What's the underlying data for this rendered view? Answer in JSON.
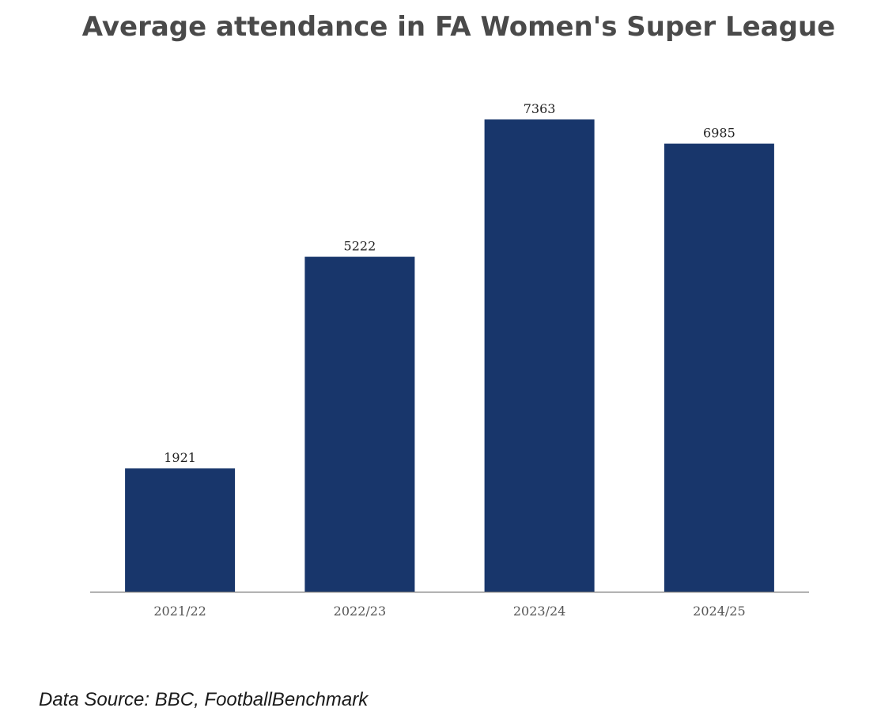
{
  "chart_data": {
    "type": "bar",
    "title": "Average attendance in FA Women's Super League",
    "categories": [
      "2021/22",
      "2022/23",
      "2023/24",
      "2024/25"
    ],
    "values": [
      1921,
      5222,
      7363,
      6985
    ],
    "data_labels": [
      "1921",
      "5222",
      "7363",
      "6985"
    ],
    "xlabel": "",
    "ylabel": "",
    "ylim": [
      0,
      7363
    ],
    "grid": false,
    "bar_color": "#18366b",
    "axis_color": "#777777"
  },
  "footer": {
    "source": "Data Source: BBC, FootballBenchmark"
  }
}
